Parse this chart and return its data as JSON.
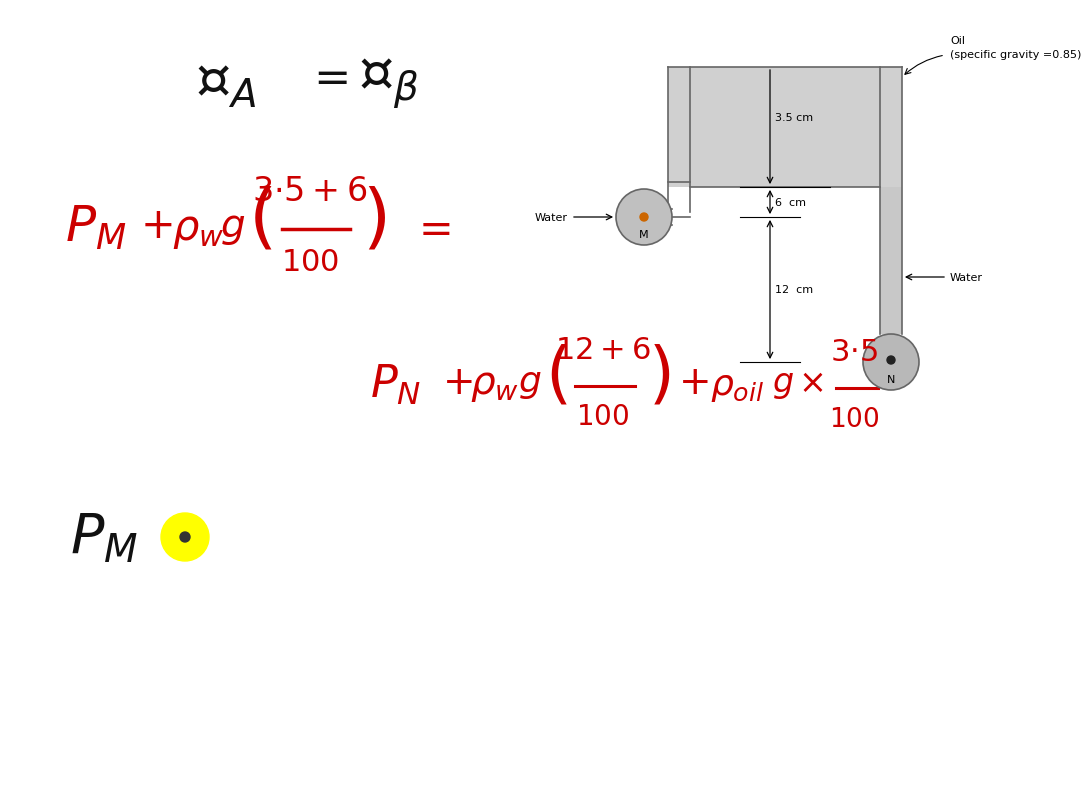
{
  "bg_color": "#ffffff",
  "red_color": "#cc0000",
  "black_color": "#111111",
  "diagram": {
    "oil_label": "Oil\n(specific gravity =0.85)",
    "water_left": "Water",
    "water_right": "Water",
    "dim_35": "3.5 cm",
    "dim_6": "6  cm",
    "dim_12": "12  cm",
    "label_M": "M",
    "label_N": "N"
  }
}
